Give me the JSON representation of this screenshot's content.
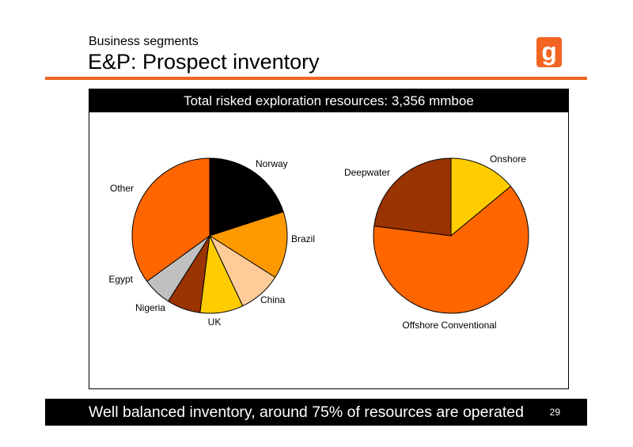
{
  "header": {
    "subtitle": "Business segments",
    "title": "E&P: Prospect inventory",
    "logo_text": "g"
  },
  "footer": {
    "text": "Well balanced inventory, around 75% of resources are operated",
    "page_number": "29"
  },
  "colors": {
    "accent": "#f26522",
    "black": "#000000",
    "white": "#ffffff"
  },
  "chart_data": [
    {
      "type": "pie",
      "title": "Total risked exploration resources: 3,356 mmboe",
      "slices": [
        {
          "label": "Norway",
          "value": 20,
          "color": "#000000"
        },
        {
          "label": "Brazil",
          "value": 14,
          "color": "#ff9900"
        },
        {
          "label": "China",
          "value": 9,
          "color": "#ffcc99"
        },
        {
          "label": "UK",
          "value": 9,
          "color": "#ffcc00"
        },
        {
          "label": "Nigeria",
          "value": 7,
          "color": "#993300"
        },
        {
          "label": "Egypt",
          "value": 6,
          "color": "#c0c0c0"
        },
        {
          "label": "Other",
          "value": 35,
          "color": "#ff6600"
        }
      ]
    },
    {
      "type": "pie",
      "slices": [
        {
          "label": "Onshore",
          "value": 14,
          "color": "#ffcc00"
        },
        {
          "label": "Offshore Conventional",
          "value": 63,
          "color": "#ff6600"
        },
        {
          "label": "Deepwater",
          "value": 23,
          "color": "#993300"
        }
      ]
    }
  ]
}
